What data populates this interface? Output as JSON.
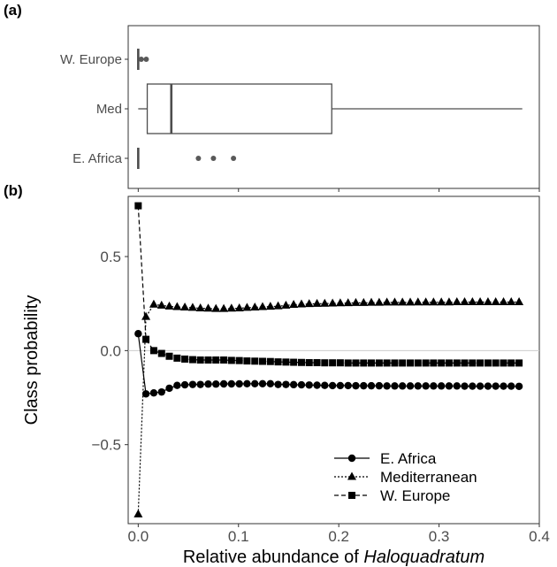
{
  "panel_labels": {
    "a": "(a)",
    "b": "(b)"
  },
  "chart_data": [
    {
      "type": "box",
      "panel": "(a)",
      "categories": [
        "W. Europe",
        "Med",
        "E. Africa"
      ],
      "xlim": [
        -0.01,
        0.4
      ],
      "boxes": [
        {
          "name": "W. Europe",
          "min": 0,
          "q1": 0,
          "median": 0,
          "q3": 0,
          "max": 0,
          "outliers": [
            0.003,
            0.008
          ]
        },
        {
          "name": "Med",
          "min": 0,
          "q1": 0.009,
          "median": 0.033,
          "q3": 0.193,
          "max": 0.383,
          "outliers": []
        },
        {
          "name": "E. Africa",
          "min": 0,
          "q1": 0,
          "median": 0,
          "q3": 0,
          "max": 0,
          "outliers": [
            0.06,
            0.075,
            0.095
          ]
        }
      ],
      "colors": {
        "box": "#4d4d4d",
        "points": "#595959"
      }
    },
    {
      "type": "line",
      "panel": "(b)",
      "xlabel": "Relative abundance of ",
      "xlabel_italic": "Haloquadratum",
      "ylabel": "Class probability",
      "xlim": [
        -0.01,
        0.4
      ],
      "ylim": [
        -0.92,
        0.82
      ],
      "x_ticks": [
        0.0,
        0.1,
        0.2,
        0.3,
        0.4
      ],
      "x_tick_labels": [
        "0.0",
        "0.1",
        "0.2",
        "0.3",
        "0.4"
      ],
      "y_ticks": [
        -0.5,
        0.0,
        0.5
      ],
      "y_tick_labels": [
        "−0.5",
        "0.0",
        "0.5"
      ],
      "reference_line": 0,
      "legend_position": "bottom-right",
      "series": [
        {
          "name": "E. Africa",
          "marker": "circle",
          "dash": "solid",
          "points": [
            [
              0,
              0.09
            ],
            [
              0.0077,
              -0.23
            ],
            [
              0.0155,
              -0.225
            ],
            [
              0.0233,
              -0.22
            ],
            [
              0.031,
              -0.2
            ],
            [
              0.0388,
              -0.185
            ],
            [
              0.0465,
              -0.182
            ],
            [
              0.0543,
              -0.18
            ],
            [
              0.062,
              -0.18
            ],
            [
              0.0698,
              -0.178
            ],
            [
              0.0775,
              -0.178
            ],
            [
              0.0853,
              -0.177
            ],
            [
              0.093,
              -0.177
            ],
            [
              0.1008,
              -0.177
            ],
            [
              0.1085,
              -0.176
            ],
            [
              0.1163,
              -0.176
            ],
            [
              0.124,
              -0.176
            ],
            [
              0.1318,
              -0.176
            ],
            [
              0.1395,
              -0.18
            ],
            [
              0.1473,
              -0.18
            ],
            [
              0.155,
              -0.181
            ],
            [
              0.1628,
              -0.182
            ],
            [
              0.1705,
              -0.183
            ],
            [
              0.1783,
              -0.184
            ],
            [
              0.186,
              -0.185
            ],
            [
              0.1938,
              -0.186
            ],
            [
              0.2015,
              -0.186
            ],
            [
              0.2093,
              -0.186
            ],
            [
              0.217,
              -0.187
            ],
            [
              0.2248,
              -0.187
            ],
            [
              0.2325,
              -0.187
            ],
            [
              0.2403,
              -0.187
            ],
            [
              0.248,
              -0.188
            ],
            [
              0.2558,
              -0.188
            ],
            [
              0.2635,
              -0.188
            ],
            [
              0.2713,
              -0.188
            ],
            [
              0.279,
              -0.188
            ],
            [
              0.2868,
              -0.188
            ],
            [
              0.2945,
              -0.188
            ],
            [
              0.3023,
              -0.188
            ],
            [
              0.31,
              -0.188
            ],
            [
              0.3178,
              -0.188
            ],
            [
              0.3255,
              -0.189
            ],
            [
              0.3333,
              -0.189
            ],
            [
              0.341,
              -0.189
            ],
            [
              0.3488,
              -0.189
            ],
            [
              0.3565,
              -0.189
            ],
            [
              0.3643,
              -0.189
            ],
            [
              0.372,
              -0.189
            ],
            [
              0.3798,
              -0.19
            ]
          ]
        },
        {
          "name": "Mediterranean",
          "marker": "triangle",
          "dash": "dotted",
          "points": [
            [
              0,
              -0.87
            ],
            [
              0.0077,
              0.18
            ],
            [
              0.0155,
              0.245
            ],
            [
              0.0233,
              0.24
            ],
            [
              0.031,
              0.235
            ],
            [
              0.0388,
              0.232
            ],
            [
              0.0465,
              0.23
            ],
            [
              0.0543,
              0.228
            ],
            [
              0.062,
              0.225
            ],
            [
              0.0698,
              0.224
            ],
            [
              0.0775,
              0.222
            ],
            [
              0.0853,
              0.222
            ],
            [
              0.093,
              0.224
            ],
            [
              0.1008,
              0.225
            ],
            [
              0.1085,
              0.228
            ],
            [
              0.1163,
              0.23
            ],
            [
              0.124,
              0.232
            ],
            [
              0.1318,
              0.234
            ],
            [
              0.1395,
              0.236
            ],
            [
              0.1473,
              0.24
            ],
            [
              0.155,
              0.244
            ],
            [
              0.1628,
              0.246
            ],
            [
              0.1705,
              0.248
            ],
            [
              0.1783,
              0.249
            ],
            [
              0.186,
              0.25
            ],
            [
              0.1938,
              0.251
            ],
            [
              0.2015,
              0.252
            ],
            [
              0.2093,
              0.253
            ],
            [
              0.217,
              0.254
            ],
            [
              0.2248,
              0.254
            ],
            [
              0.2325,
              0.255
            ],
            [
              0.2403,
              0.255
            ],
            [
              0.248,
              0.256
            ],
            [
              0.2558,
              0.256
            ],
            [
              0.2635,
              0.256
            ],
            [
              0.2713,
              0.256
            ],
            [
              0.279,
              0.257
            ],
            [
              0.2868,
              0.257
            ],
            [
              0.2945,
              0.257
            ],
            [
              0.3023,
              0.257
            ],
            [
              0.31,
              0.257
            ],
            [
              0.3178,
              0.258
            ],
            [
              0.3255,
              0.258
            ],
            [
              0.3333,
              0.258
            ],
            [
              0.341,
              0.258
            ],
            [
              0.3488,
              0.258
            ],
            [
              0.3565,
              0.258
            ],
            [
              0.3643,
              0.258
            ],
            [
              0.372,
              0.258
            ],
            [
              0.3798,
              0.258
            ]
          ]
        },
        {
          "name": "W. Europe",
          "marker": "square",
          "dash": "dashed",
          "points": [
            [
              0,
              0.77
            ],
            [
              0.0077,
              0.06
            ],
            [
              0.0155,
              0.0
            ],
            [
              0.0233,
              -0.015
            ],
            [
              0.031,
              -0.03
            ],
            [
              0.0388,
              -0.04
            ],
            [
              0.0465,
              -0.045
            ],
            [
              0.0543,
              -0.048
            ],
            [
              0.062,
              -0.05
            ],
            [
              0.0698,
              -0.05
            ],
            [
              0.0775,
              -0.05
            ],
            [
              0.0853,
              -0.05
            ],
            [
              0.093,
              -0.052
            ],
            [
              0.1008,
              -0.053
            ],
            [
              0.1085,
              -0.055
            ],
            [
              0.1163,
              -0.056
            ],
            [
              0.124,
              -0.057
            ],
            [
              0.1318,
              -0.058
            ],
            [
              0.1395,
              -0.06
            ],
            [
              0.1473,
              -0.061
            ],
            [
              0.155,
              -0.062
            ],
            [
              0.1628,
              -0.063
            ],
            [
              0.1705,
              -0.064
            ],
            [
              0.1783,
              -0.064
            ],
            [
              0.186,
              -0.065
            ],
            [
              0.1938,
              -0.065
            ],
            [
              0.2015,
              -0.065
            ],
            [
              0.2093,
              -0.066
            ],
            [
              0.217,
              -0.066
            ],
            [
              0.2248,
              -0.066
            ],
            [
              0.2325,
              -0.066
            ],
            [
              0.2403,
              -0.066
            ],
            [
              0.248,
              -0.066
            ],
            [
              0.2558,
              -0.066
            ],
            [
              0.2635,
              -0.066
            ],
            [
              0.2713,
              -0.066
            ],
            [
              0.279,
              -0.066
            ],
            [
              0.2868,
              -0.066
            ],
            [
              0.2945,
              -0.066
            ],
            [
              0.3023,
              -0.066
            ],
            [
              0.31,
              -0.066
            ],
            [
              0.3178,
              -0.066
            ],
            [
              0.3255,
              -0.066
            ],
            [
              0.3333,
              -0.066
            ],
            [
              0.341,
              -0.066
            ],
            [
              0.3488,
              -0.066
            ],
            [
              0.3565,
              -0.066
            ],
            [
              0.3643,
              -0.066
            ],
            [
              0.372,
              -0.066
            ],
            [
              0.3798,
              -0.066
            ]
          ]
        }
      ],
      "colors": {
        "series": "#000000",
        "axis_text": "#4d4d4d",
        "frame": "#333333",
        "reference_line": "#cccccc"
      }
    }
  ]
}
